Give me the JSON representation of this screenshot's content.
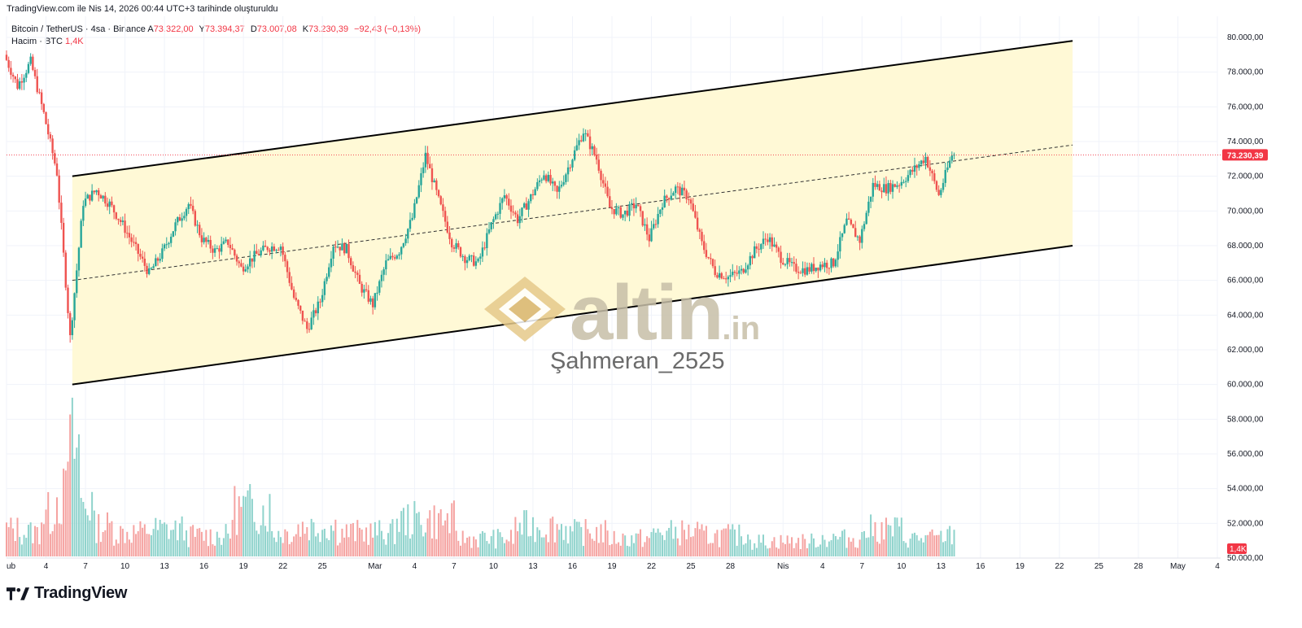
{
  "header": {
    "caption": "TradingView.com ile Nis 14, 2026 00:44 UTC+3 tarihinde oluşturuldu"
  },
  "legend": {
    "symbol": "Bitcoin / TetherUS · 4sa · Binance",
    "open_label": "A",
    "open": "73.322,00",
    "high_label": "Y",
    "high": "73.394,37",
    "low_label": "D",
    "low": "73.007,08",
    "close_label": "K",
    "close": "73.230,39",
    "change": "−92,43 (−0,13%)",
    "volume_label": "Hacim · BTC",
    "volume_value": "1,4K"
  },
  "watermark": {
    "site_main": "altin",
    "site_tld": ".in",
    "user": "Şahmeran_2525"
  },
  "brand": {
    "name": "TradingView"
  },
  "colors": {
    "up": "#26a69a",
    "down": "#ef5350",
    "up_volume": "#8fd3cc",
    "down_volume": "#f5a3a1",
    "channel_fill": "#fff9d6",
    "price_badge": "#f23645"
  },
  "chart_data": {
    "type": "candlestick",
    "title": "Bitcoin / TetherUS · 4sa · Binance",
    "y_ticks": [
      "80.000,00",
      "78.000,00",
      "76.000,00",
      "74.000,00",
      "72.000,00",
      "70.000,00",
      "68.000,00",
      "66.000,00",
      "64.000,00",
      "62.000,00",
      "60.000,00",
      "58.000,00",
      "56.000,00",
      "54.000,00",
      "52.000,00",
      "50.000,00"
    ],
    "y_tick_values": [
      80000,
      78000,
      76000,
      74000,
      72000,
      70000,
      68000,
      66000,
      64000,
      62000,
      60000,
      58000,
      56000,
      54000,
      52000,
      50000
    ],
    "x_ticks": [
      "ub",
      "4",
      "7",
      "10",
      "13",
      "16",
      "19",
      "22",
      "25",
      "Mar",
      "4",
      "7",
      "10",
      "13",
      "16",
      "19",
      "22",
      "25",
      "28",
      "Nis",
      "4",
      "7",
      "10",
      "13",
      "16",
      "19",
      "22",
      "25",
      "28",
      "May",
      "4"
    ],
    "x_tick_dates": [
      "2026-02-01",
      "2026-02-04",
      "2026-02-07",
      "2026-02-10",
      "2026-02-13",
      "2026-02-16",
      "2026-02-19",
      "2026-02-22",
      "2026-02-25",
      "2026-03-01",
      "2026-03-04",
      "2026-03-07",
      "2026-03-10",
      "2026-03-13",
      "2026-03-16",
      "2026-03-19",
      "2026-03-22",
      "2026-03-25",
      "2026-03-28",
      "2026-04-01",
      "2026-04-04",
      "2026-04-07",
      "2026-04-10",
      "2026-04-13",
      "2026-04-16",
      "2026-04-19",
      "2026-04-22",
      "2026-04-25",
      "2026-04-28",
      "2026-05-01",
      "2026-05-04"
    ],
    "last_price_label": "73.230,39",
    "last_price": 73230.39,
    "volume_badge": "1,4K",
    "channel": {
      "upper": [
        {
          "date": "2026-02-06",
          "price": 72000
        },
        {
          "date": "2026-04-23",
          "price": 79800
        }
      ],
      "lower": [
        {
          "date": "2026-02-06",
          "price": 60000
        },
        {
          "date": "2026-04-23",
          "price": 68000
        }
      ],
      "mid": [
        {
          "date": "2026-02-06",
          "price": 66000
        },
        {
          "date": "2026-04-23",
          "price": 73800
        }
      ]
    },
    "price_path": [
      {
        "date": "2026-02-01",
        "price": 79000
      },
      {
        "date": "2026-02-02",
        "price": 77200
      },
      {
        "date": "2026-02-03",
        "price": 78600
      },
      {
        "date": "2026-02-04",
        "price": 75600
      },
      {
        "date": "2026-02-05",
        "price": 72200
      },
      {
        "date": "2026-02-06",
        "price": 62700
      },
      {
        "date": "2026-02-07",
        "price": 70500
      },
      {
        "date": "2026-02-08",
        "price": 71200
      },
      {
        "date": "2026-02-09",
        "price": 70400
      },
      {
        "date": "2026-02-10",
        "price": 69200
      },
      {
        "date": "2026-02-11",
        "price": 67800
      },
      {
        "date": "2026-02-12",
        "price": 66400
      },
      {
        "date": "2026-02-13",
        "price": 67600
      },
      {
        "date": "2026-02-14",
        "price": 69200
      },
      {
        "date": "2026-02-15",
        "price": 70400
      },
      {
        "date": "2026-02-16",
        "price": 68400
      },
      {
        "date": "2026-02-17",
        "price": 67700
      },
      {
        "date": "2026-02-18",
        "price": 68200
      },
      {
        "date": "2026-02-19",
        "price": 66700
      },
      {
        "date": "2026-02-20",
        "price": 67400
      },
      {
        "date": "2026-02-21",
        "price": 67900
      },
      {
        "date": "2026-02-22",
        "price": 68000
      },
      {
        "date": "2026-02-23",
        "price": 65000
      },
      {
        "date": "2026-02-24",
        "price": 63200
      },
      {
        "date": "2026-02-25",
        "price": 64800
      },
      {
        "date": "2026-02-26",
        "price": 68100
      },
      {
        "date": "2026-02-27",
        "price": 67800
      },
      {
        "date": "2026-02-28",
        "price": 65700
      },
      {
        "date": "2026-03-01",
        "price": 64600
      },
      {
        "date": "2026-03-02",
        "price": 67000
      },
      {
        "date": "2026-03-03",
        "price": 67700
      },
      {
        "date": "2026-03-04",
        "price": 69600
      },
      {
        "date": "2026-03-05",
        "price": 73200
      },
      {
        "date": "2026-03-06",
        "price": 70600
      },
      {
        "date": "2026-03-07",
        "price": 68200
      },
      {
        "date": "2026-03-08",
        "price": 67300
      },
      {
        "date": "2026-03-09",
        "price": 67000
      },
      {
        "date": "2026-03-10",
        "price": 69200
      },
      {
        "date": "2026-03-11",
        "price": 70900
      },
      {
        "date": "2026-03-12",
        "price": 69500
      },
      {
        "date": "2026-03-13",
        "price": 70800
      },
      {
        "date": "2026-03-14",
        "price": 72200
      },
      {
        "date": "2026-03-15",
        "price": 71000
      },
      {
        "date": "2026-03-16",
        "price": 72800
      },
      {
        "date": "2026-03-17",
        "price": 74600
      },
      {
        "date": "2026-03-18",
        "price": 73000
      },
      {
        "date": "2026-03-19",
        "price": 70200
      },
      {
        "date": "2026-03-20",
        "price": 69800
      },
      {
        "date": "2026-03-21",
        "price": 70400
      },
      {
        "date": "2026-03-22",
        "price": 68400
      },
      {
        "date": "2026-03-23",
        "price": 70500
      },
      {
        "date": "2026-03-24",
        "price": 71300
      },
      {
        "date": "2026-03-25",
        "price": 70800
      },
      {
        "date": "2026-03-26",
        "price": 68100
      },
      {
        "date": "2026-03-27",
        "price": 66500
      },
      {
        "date": "2026-03-28",
        "price": 66200
      },
      {
        "date": "2026-03-29",
        "price": 66500
      },
      {
        "date": "2026-03-30",
        "price": 67700
      },
      {
        "date": "2026-03-31",
        "price": 68500
      },
      {
        "date": "2026-04-01",
        "price": 67300
      },
      {
        "date": "2026-04-02",
        "price": 66700
      },
      {
        "date": "2026-04-03",
        "price": 66600
      },
      {
        "date": "2026-04-04",
        "price": 66900
      },
      {
        "date": "2026-04-05",
        "price": 67000
      },
      {
        "date": "2026-04-06",
        "price": 69400
      },
      {
        "date": "2026-04-07",
        "price": 68300
      },
      {
        "date": "2026-04-08",
        "price": 71500
      },
      {
        "date": "2026-04-09",
        "price": 71300
      },
      {
        "date": "2026-04-10",
        "price": 71600
      },
      {
        "date": "2026-04-11",
        "price": 72300
      },
      {
        "date": "2026-04-12",
        "price": 73100
      },
      {
        "date": "2026-04-13",
        "price": 70900
      },
      {
        "date": "2026-04-14",
        "price": 73230
      }
    ],
    "volume_profile": [
      {
        "date": "2026-02-01",
        "value": 0.9
      },
      {
        "date": "2026-02-03",
        "value": 0.8
      },
      {
        "date": "2026-02-04",
        "value": 1.4
      },
      {
        "date": "2026-02-05",
        "value": 2.0
      },
      {
        "date": "2026-02-06",
        "value": 3.6
      },
      {
        "date": "2026-02-07",
        "value": 1.8
      },
      {
        "date": "2026-02-08",
        "value": 1.0
      },
      {
        "date": "2026-02-10",
        "value": 0.8
      },
      {
        "date": "2026-02-13",
        "value": 0.9
      },
      {
        "date": "2026-02-16",
        "value": 0.7
      },
      {
        "date": "2026-02-20",
        "value": 1.6
      },
      {
        "date": "2026-02-22",
        "value": 0.8
      },
      {
        "date": "2026-02-24",
        "value": 1.0
      },
      {
        "date": "2026-02-28",
        "value": 0.8
      },
      {
        "date": "2026-03-05",
        "value": 1.2
      },
      {
        "date": "2026-03-09",
        "value": 0.6
      },
      {
        "date": "2026-03-14",
        "value": 1.0
      },
      {
        "date": "2026-03-17",
        "value": 0.8
      },
      {
        "date": "2026-03-20",
        "value": 0.6
      },
      {
        "date": "2026-03-24",
        "value": 0.8
      },
      {
        "date": "2026-03-27",
        "value": 0.7
      },
      {
        "date": "2026-04-01",
        "value": 0.5
      },
      {
        "date": "2026-04-06",
        "value": 0.6
      },
      {
        "date": "2026-04-08",
        "value": 0.9
      },
      {
        "date": "2026-04-12",
        "value": 0.6
      },
      {
        "date": "2026-04-14",
        "value": 0.7
      }
    ]
  }
}
